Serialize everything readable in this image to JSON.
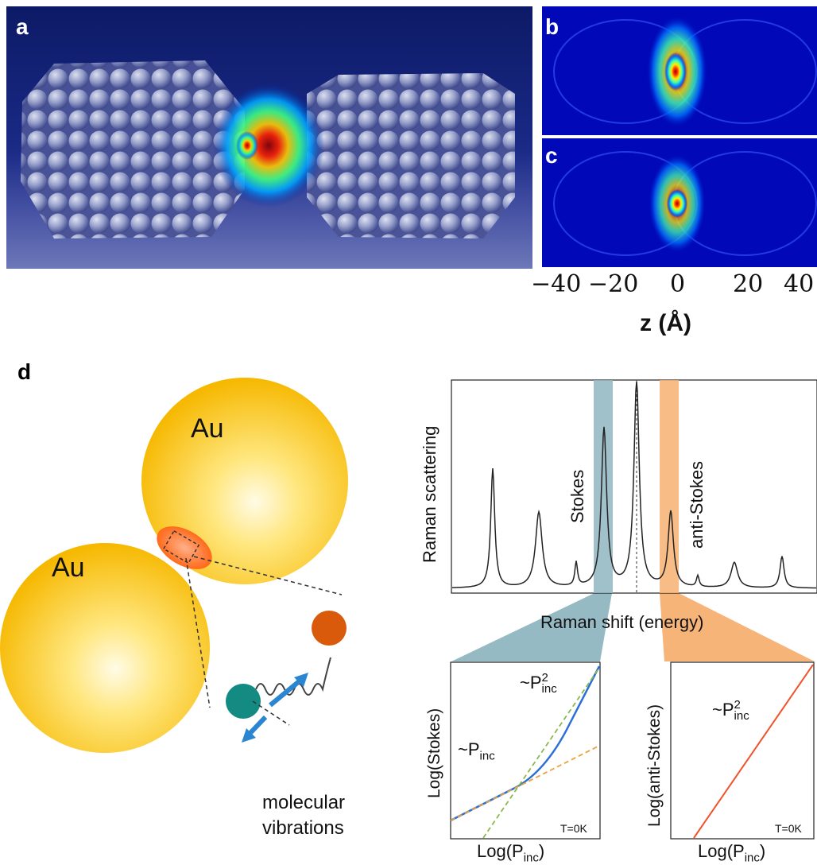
{
  "panels": {
    "a": {
      "letter": "a"
    },
    "b": {
      "letter": "b"
    },
    "c": {
      "letter": "c"
    },
    "d": {
      "letter": "d"
    }
  },
  "axis_bc": {
    "ticks": [
      "−40",
      "−20",
      "0",
      "20",
      "40"
    ],
    "title": "z (Å)"
  },
  "illustration": {
    "au_top": "Au",
    "au_bottom": "Au",
    "vibration_line1": "molecular",
    "vibration_line2": "vibrations"
  },
  "raman": {
    "ylabel": "Raman scattering",
    "xlabel": "Raman shift (energy)",
    "stokes_label": "Stokes",
    "antistokes_label": "anti-Stokes",
    "colors": {
      "stokes_band": "#8fb6c0",
      "antistokes_band": "#f7b072"
    }
  },
  "power_plots": {
    "left": {
      "ylabel": "Log(Stokes)",
      "xlabel_main": "Log(P",
      "xlabel_sub": "inc",
      "xlabel_end": ")",
      "note": "T=0K",
      "linear_label_main": "~P",
      "linear_label_sub": "inc",
      "quad_label_main": "~P",
      "quad_label_sup": "2",
      "quad_label_sub": "inc"
    },
    "right": {
      "ylabel": "Log(anti-Stokes)",
      "xlabel_main": "Log(P",
      "xlabel_sub": "inc",
      "xlabel_end": ")",
      "note": "T=0K",
      "quad_label_main": "~P",
      "quad_label_sup": "2",
      "quad_label_sub": "inc"
    }
  }
}
